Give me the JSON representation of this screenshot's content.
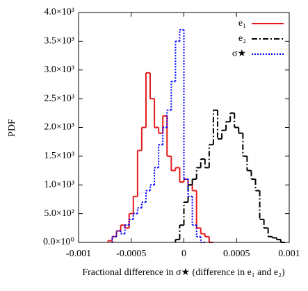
{
  "chart_data": {
    "type": "histogram",
    "xlabel": "Fractional difference in σ★ (difference in e₁ and e₂)",
    "ylabel": "PDF",
    "xlim": [
      -0.001,
      0.001
    ],
    "xticks": [
      -0.001,
      -0.0005,
      0,
      0.0005,
      0.001
    ],
    "ylim": [
      0,
      4000
    ],
    "yticks": [
      {
        "value": 0,
        "label": "0.0×10⁰"
      },
      {
        "value": 500,
        "label": "5.0×10²"
      },
      {
        "value": 1000,
        "label": "1.0×10³"
      },
      {
        "value": 1500,
        "label": "1.5×10³"
      },
      {
        "value": 2000,
        "label": "2.0×10³"
      },
      {
        "value": 2500,
        "label": "2.5×10³"
      },
      {
        "value": 3000,
        "label": "3.0×10³"
      },
      {
        "value": 3500,
        "label": "3.5×10³"
      },
      {
        "value": 4000,
        "label": "4.0×10³"
      }
    ],
    "legend": "upper right",
    "series": [
      {
        "name": "e₁",
        "color": "#e41a1c",
        "linestyle": "solid",
        "bins": [
          -0.00072,
          -0.00068,
          -0.00064,
          -0.0006,
          -0.00056,
          -0.00052,
          -0.00048,
          -0.00044,
          -0.0004,
          -0.00036,
          -0.00032,
          -0.00028,
          -0.00024,
          -0.0002,
          -0.00016,
          -0.00012,
          -8e-05,
          -4e-05,
          0,
          4e-05,
          8e-05,
          0.00012,
          0.00016,
          0.0002,
          0.00024,
          0.00028
        ],
        "values": [
          30,
          100,
          200,
          300,
          250,
          500,
          800,
          1600,
          2000,
          2950,
          2500,
          2000,
          1900,
          2200,
          1500,
          1250,
          1300,
          1050,
          1100,
          1000,
          900,
          250,
          150,
          100,
          0
        ]
      },
      {
        "name": "e₂",
        "color": "#000000",
        "linestyle": "dashdot",
        "bins": [
          -8e-05,
          -4e-05,
          0,
          4e-05,
          8e-05,
          0.00012,
          0.00016,
          0.0002,
          0.00024,
          0.00028,
          0.00032,
          0.00036,
          0.0004,
          0.00044,
          0.00048,
          0.00052,
          0.00056,
          0.0006,
          0.00064,
          0.00068,
          0.00072,
          0.00076,
          0.0008,
          0.00084,
          0.00088,
          0.00092,
          0.00096
        ],
        "values": [
          50,
          300,
          700,
          1000,
          1100,
          1300,
          1450,
          1300,
          1700,
          2300,
          1800,
          1950,
          2100,
          2250,
          2000,
          1900,
          1500,
          1250,
          1100,
          900,
          400,
          250,
          100,
          80,
          50,
          0
        ]
      },
      {
        "name": "σ★",
        "color": "#0000ff",
        "linestyle": "dotted",
        "bins": [
          -0.00068,
          -0.00064,
          -0.0006,
          -0.00056,
          -0.00052,
          -0.00048,
          -0.00044,
          -0.0004,
          -0.00036,
          -0.00032,
          -0.00028,
          -0.00024,
          -0.0002,
          -0.00016,
          -0.00012,
          -8e-05,
          -4e-05,
          0,
          4e-05,
          8e-05,
          0.00012,
          0.00016,
          0.0002
        ],
        "values": [
          100,
          200,
          150,
          300,
          400,
          500,
          600,
          700,
          900,
          1000,
          1300,
          1700,
          2000,
          2300,
          2800,
          3500,
          3700,
          1100,
          800,
          300,
          100,
          0
        ]
      }
    ]
  }
}
